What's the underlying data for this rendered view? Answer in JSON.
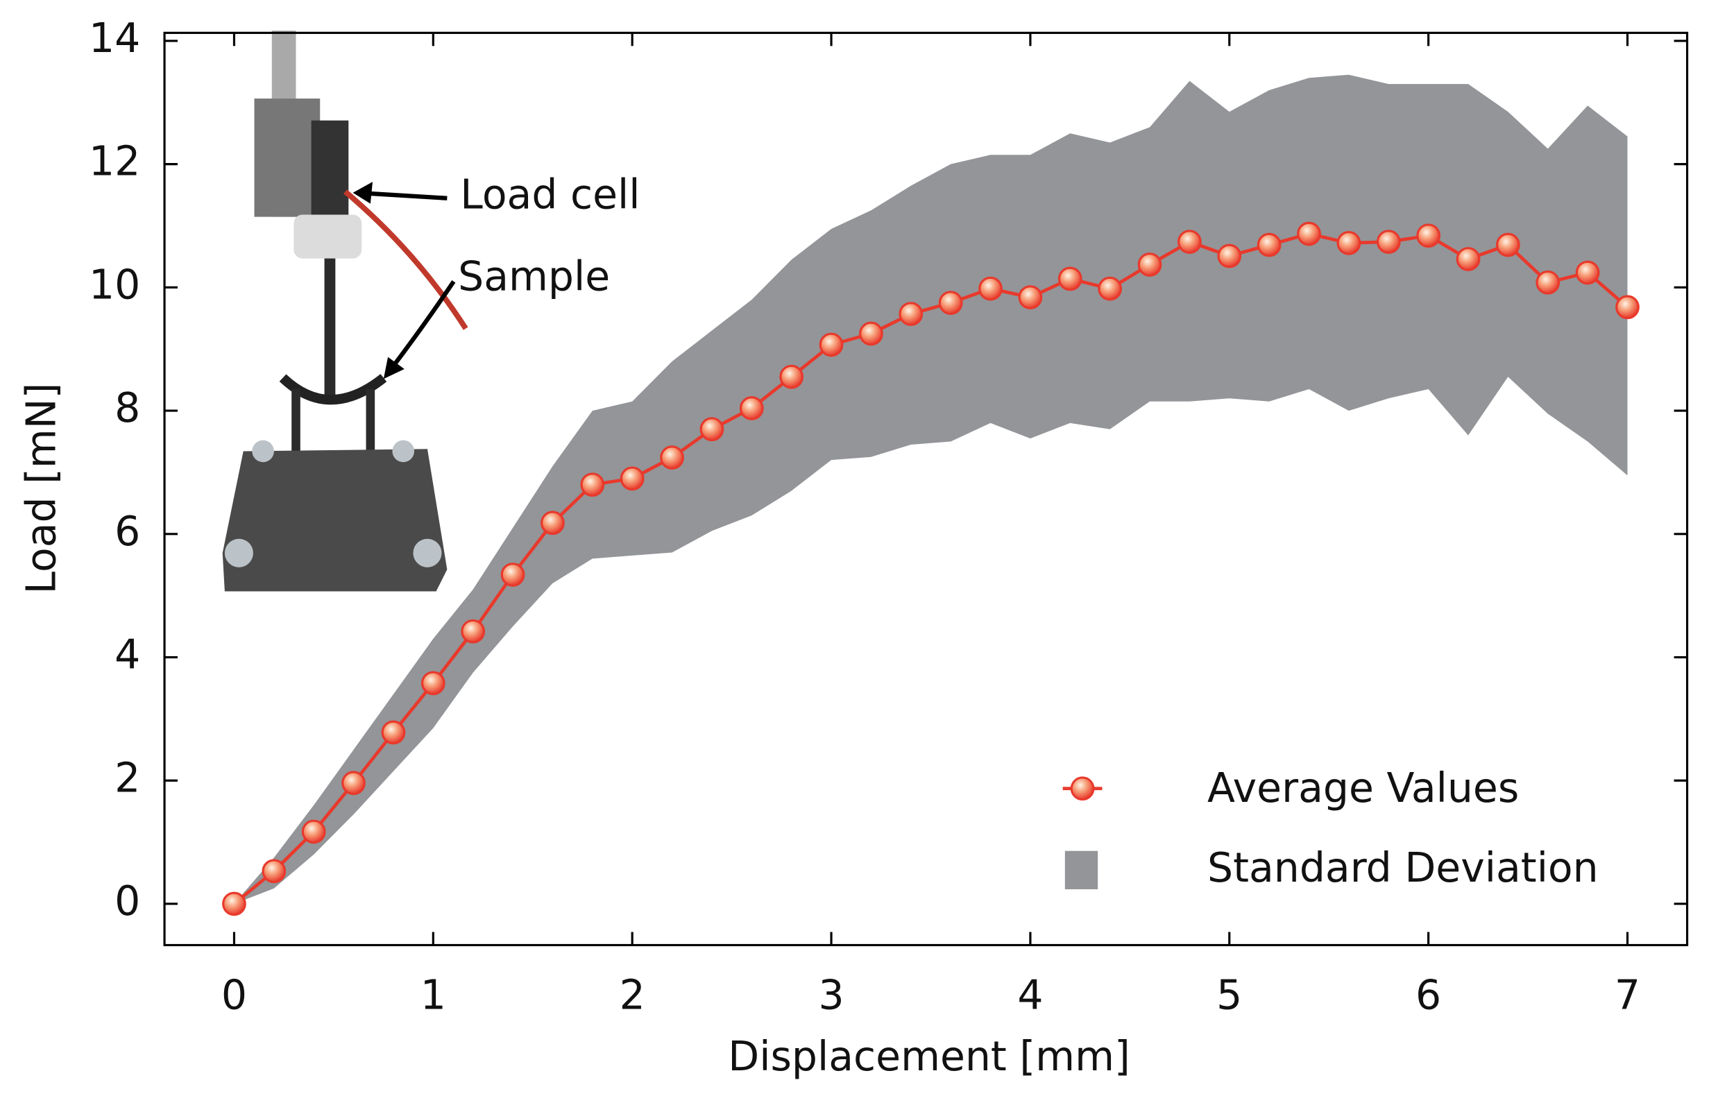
{
  "chart_data": {
    "type": "line",
    "xlabel": "Displacement [mm]",
    "ylabel": "Load [mN]",
    "x": [
      0,
      0.2,
      0.4,
      0.6,
      0.8,
      1.0,
      1.2,
      1.4,
      1.6,
      1.8,
      2.0,
      2.2,
      2.4,
      2.6,
      2.8,
      3.0,
      3.2,
      3.4,
      3.6,
      3.8,
      4.0,
      4.2,
      4.4,
      4.6,
      4.8,
      5.0,
      5.2,
      5.4,
      5.6,
      5.8,
      6.0,
      6.2,
      6.4,
      6.6,
      6.8,
      7.0
    ],
    "series": [
      {
        "name": "Average Values",
        "color": "#e8392c",
        "values": [
          0,
          0.53,
          1.17,
          1.96,
          2.78,
          3.58,
          4.42,
          5.34,
          6.18,
          6.8,
          6.9,
          7.24,
          7.7,
          8.04,
          8.55,
          9.07,
          9.25,
          9.57,
          9.75,
          9.98,
          9.84,
          10.14,
          9.98,
          10.37,
          10.74,
          10.51,
          10.69,
          10.87,
          10.72,
          10.74,
          10.84,
          10.46,
          10.69,
          10.08,
          10.24,
          9.68
        ]
      }
    ],
    "band": {
      "name": "Standard Deviation",
      "color": "#939598",
      "upper": [
        0,
        0.75,
        1.6,
        2.5,
        3.4,
        4.3,
        5.1,
        6.1,
        7.1,
        8.0,
        8.15,
        8.8,
        9.3,
        9.8,
        10.45,
        10.95,
        11.25,
        11.65,
        12.0,
        12.15,
        12.15,
        12.5,
        12.35,
        12.6,
        13.35,
        12.85,
        13.2,
        13.4,
        13.45,
        13.3,
        13.3,
        13.3,
        12.85,
        12.25,
        12.95,
        12.45
      ],
      "lower": [
        0,
        0.25,
        0.8,
        1.45,
        2.15,
        2.85,
        3.75,
        4.5,
        5.2,
        5.6,
        5.65,
        5.7,
        6.05,
        6.3,
        6.7,
        7.2,
        7.25,
        7.45,
        7.5,
        7.8,
        7.55,
        7.8,
        7.7,
        8.15,
        8.15,
        8.2,
        8.15,
        8.35,
        8.0,
        8.2,
        8.35,
        7.6,
        8.55,
        7.95,
        7.5,
        6.95
      ]
    },
    "annotations": [
      "Load cell",
      "Sample"
    ],
    "xlim": [
      -0.35,
      7.3
    ],
    "ylim": [
      -0.67,
      14.13
    ],
    "xticks": [
      0,
      1,
      2,
      3,
      4,
      5,
      6,
      7
    ],
    "yticks": [
      0,
      2,
      4,
      6,
      8,
      10,
      12,
      14
    ],
    "legend": "lower right"
  }
}
